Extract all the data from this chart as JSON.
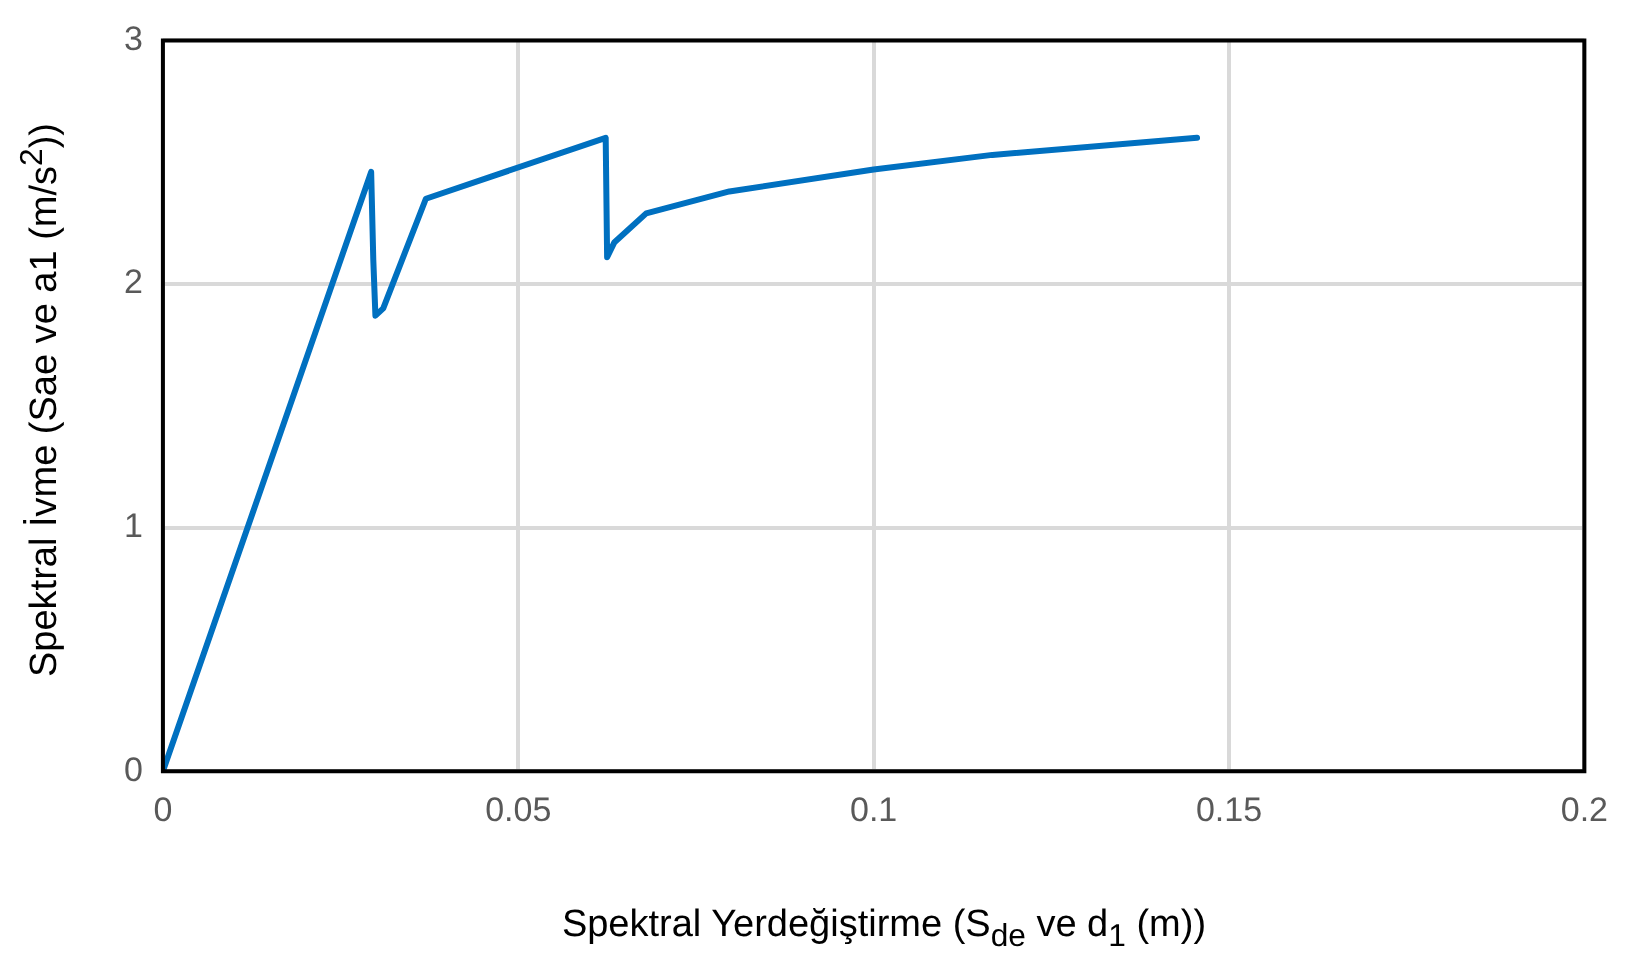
{
  "chart_data": {
    "type": "line",
    "xlabel": "Spektral Yerdeğiştirme (S$_{de}$ ve d$_{1}$ (m))",
    "ylabel": "Spektral İvme  (Sae ve a1 (m/s$^{2}$))",
    "x": [
      0,
      0.0293,
      0.0296,
      0.0299,
      0.031,
      0.037,
      0.0623,
      0.0625,
      0.0635,
      0.068,
      0.0797,
      0.1,
      0.1167,
      0.1455
    ],
    "series": [
      {
        "color": "#0070c0",
        "values": [
          0,
          2.46,
          2.1,
          1.87,
          1.9,
          2.35,
          2.6,
          2.11,
          2.17,
          2.29,
          2.38,
          2.47,
          2.53,
          2.6
        ]
      }
    ],
    "xlim": [
      0,
      0.2
    ],
    "xticks": [
      0,
      0.05,
      0.1,
      0.15,
      0.2
    ],
    "ylim": [
      0,
      3
    ],
    "yticks": [
      0,
      1,
      2,
      3
    ],
    "grid": true,
    "marker": "none",
    "line_style": "solid",
    "legend": false
  }
}
